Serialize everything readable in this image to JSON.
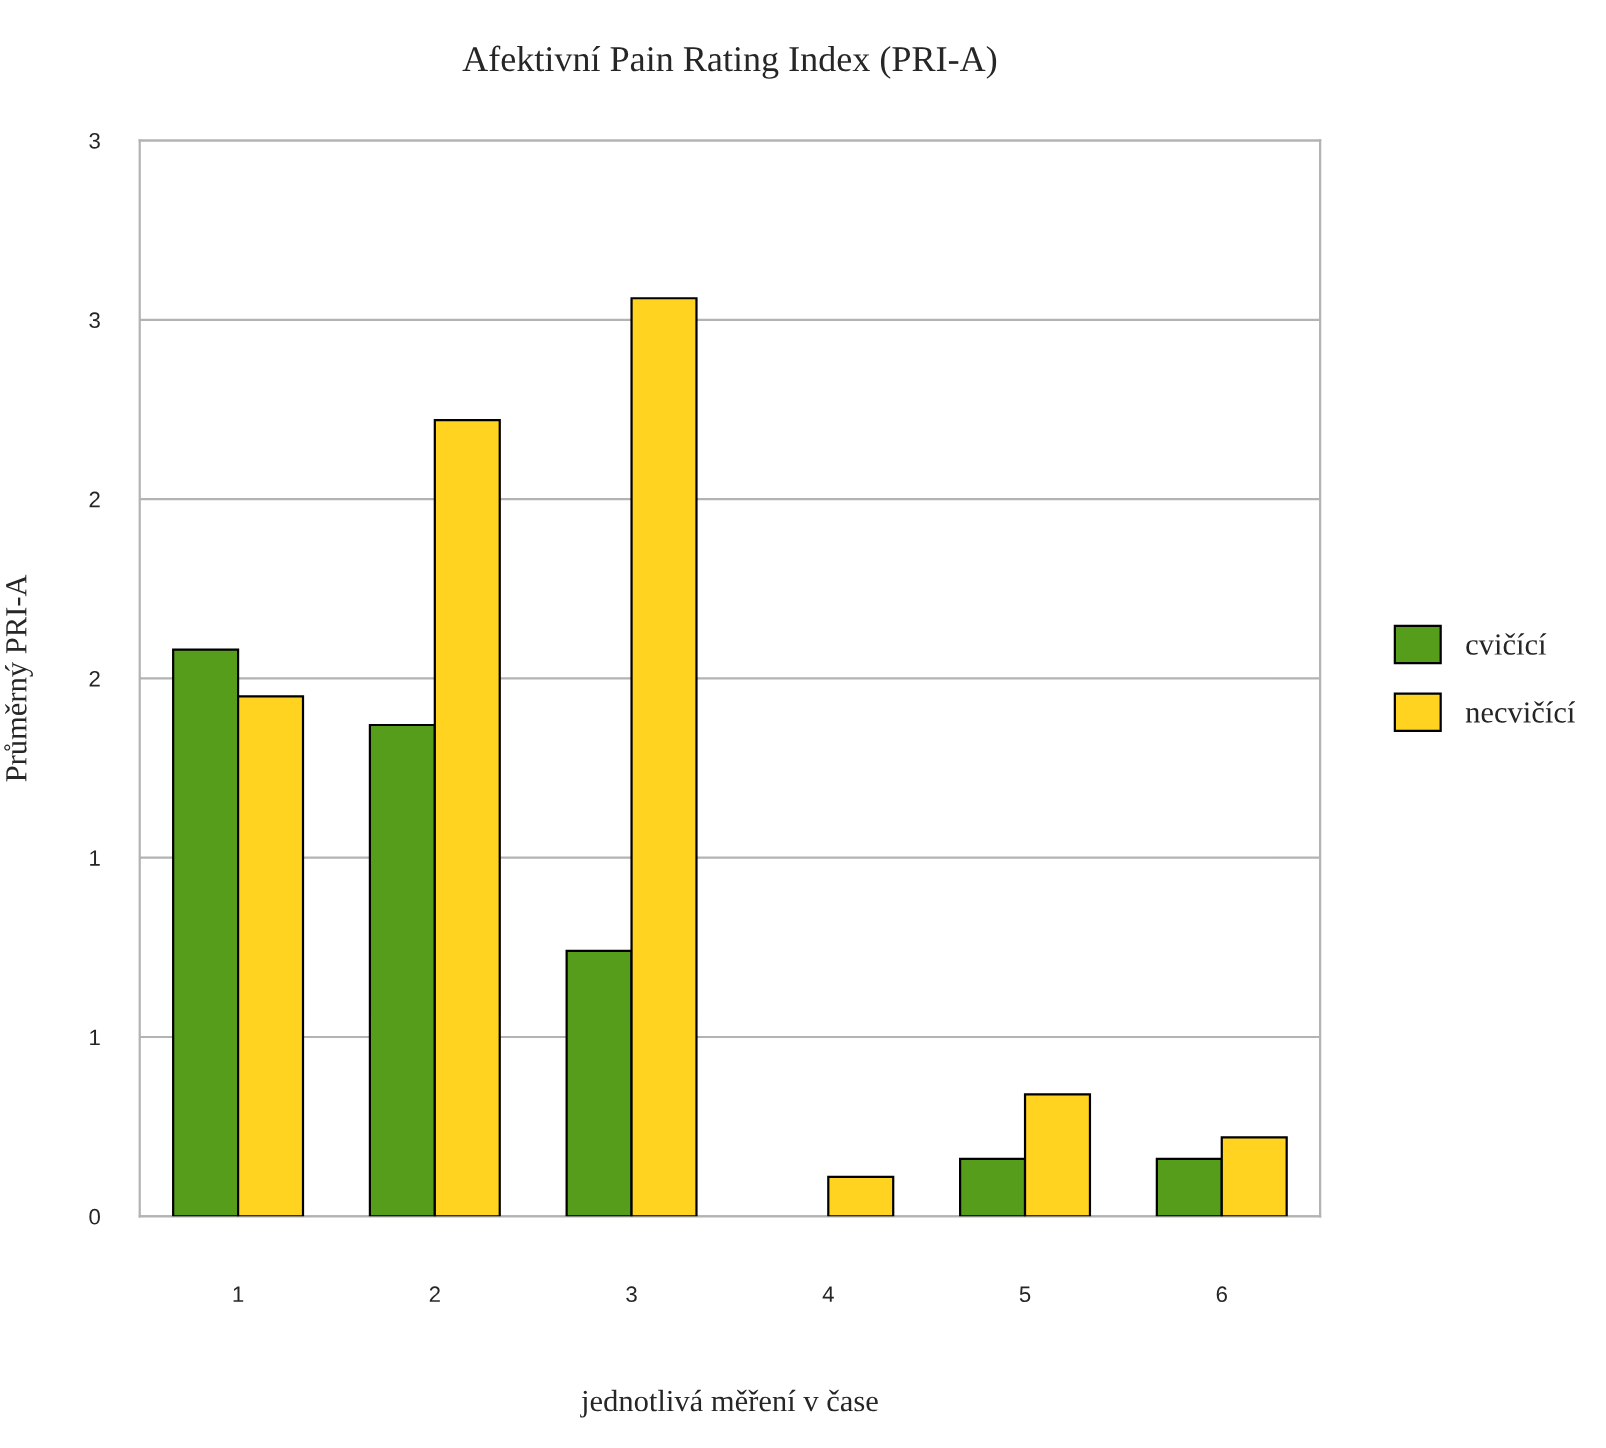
{
  "chart_data": {
    "type": "bar",
    "title": "Afektivní Pain Rating Index (PRI-A)",
    "xlabel": "jednotlivá měření v čase",
    "ylabel": "Průměrný PRI-A",
    "categories": [
      "1",
      "2",
      "3",
      "4",
      "5",
      "6"
    ],
    "series": [
      {
        "name": "cvičící",
        "color": "#579d1c",
        "values": [
          1.58,
          1.37,
          0.74,
          null,
          0.16,
          0.16
        ]
      },
      {
        "name": "necvičící",
        "color": "#ffd320",
        "values": [
          1.45,
          2.22,
          2.56,
          0.11,
          0.34,
          0.22
        ]
      }
    ],
    "ylim": [
      0,
      3
    ],
    "yticks": [
      {
        "value": 0,
        "label": "0"
      },
      {
        "value": 0.5,
        "label": "1"
      },
      {
        "value": 1,
        "label": "1"
      },
      {
        "value": 1.5,
        "label": "2"
      },
      {
        "value": 2,
        "label": "2"
      },
      {
        "value": 2.5,
        "label": "3"
      },
      {
        "value": 3,
        "label": "3"
      }
    ],
    "grid": "y",
    "legend": "right"
  }
}
